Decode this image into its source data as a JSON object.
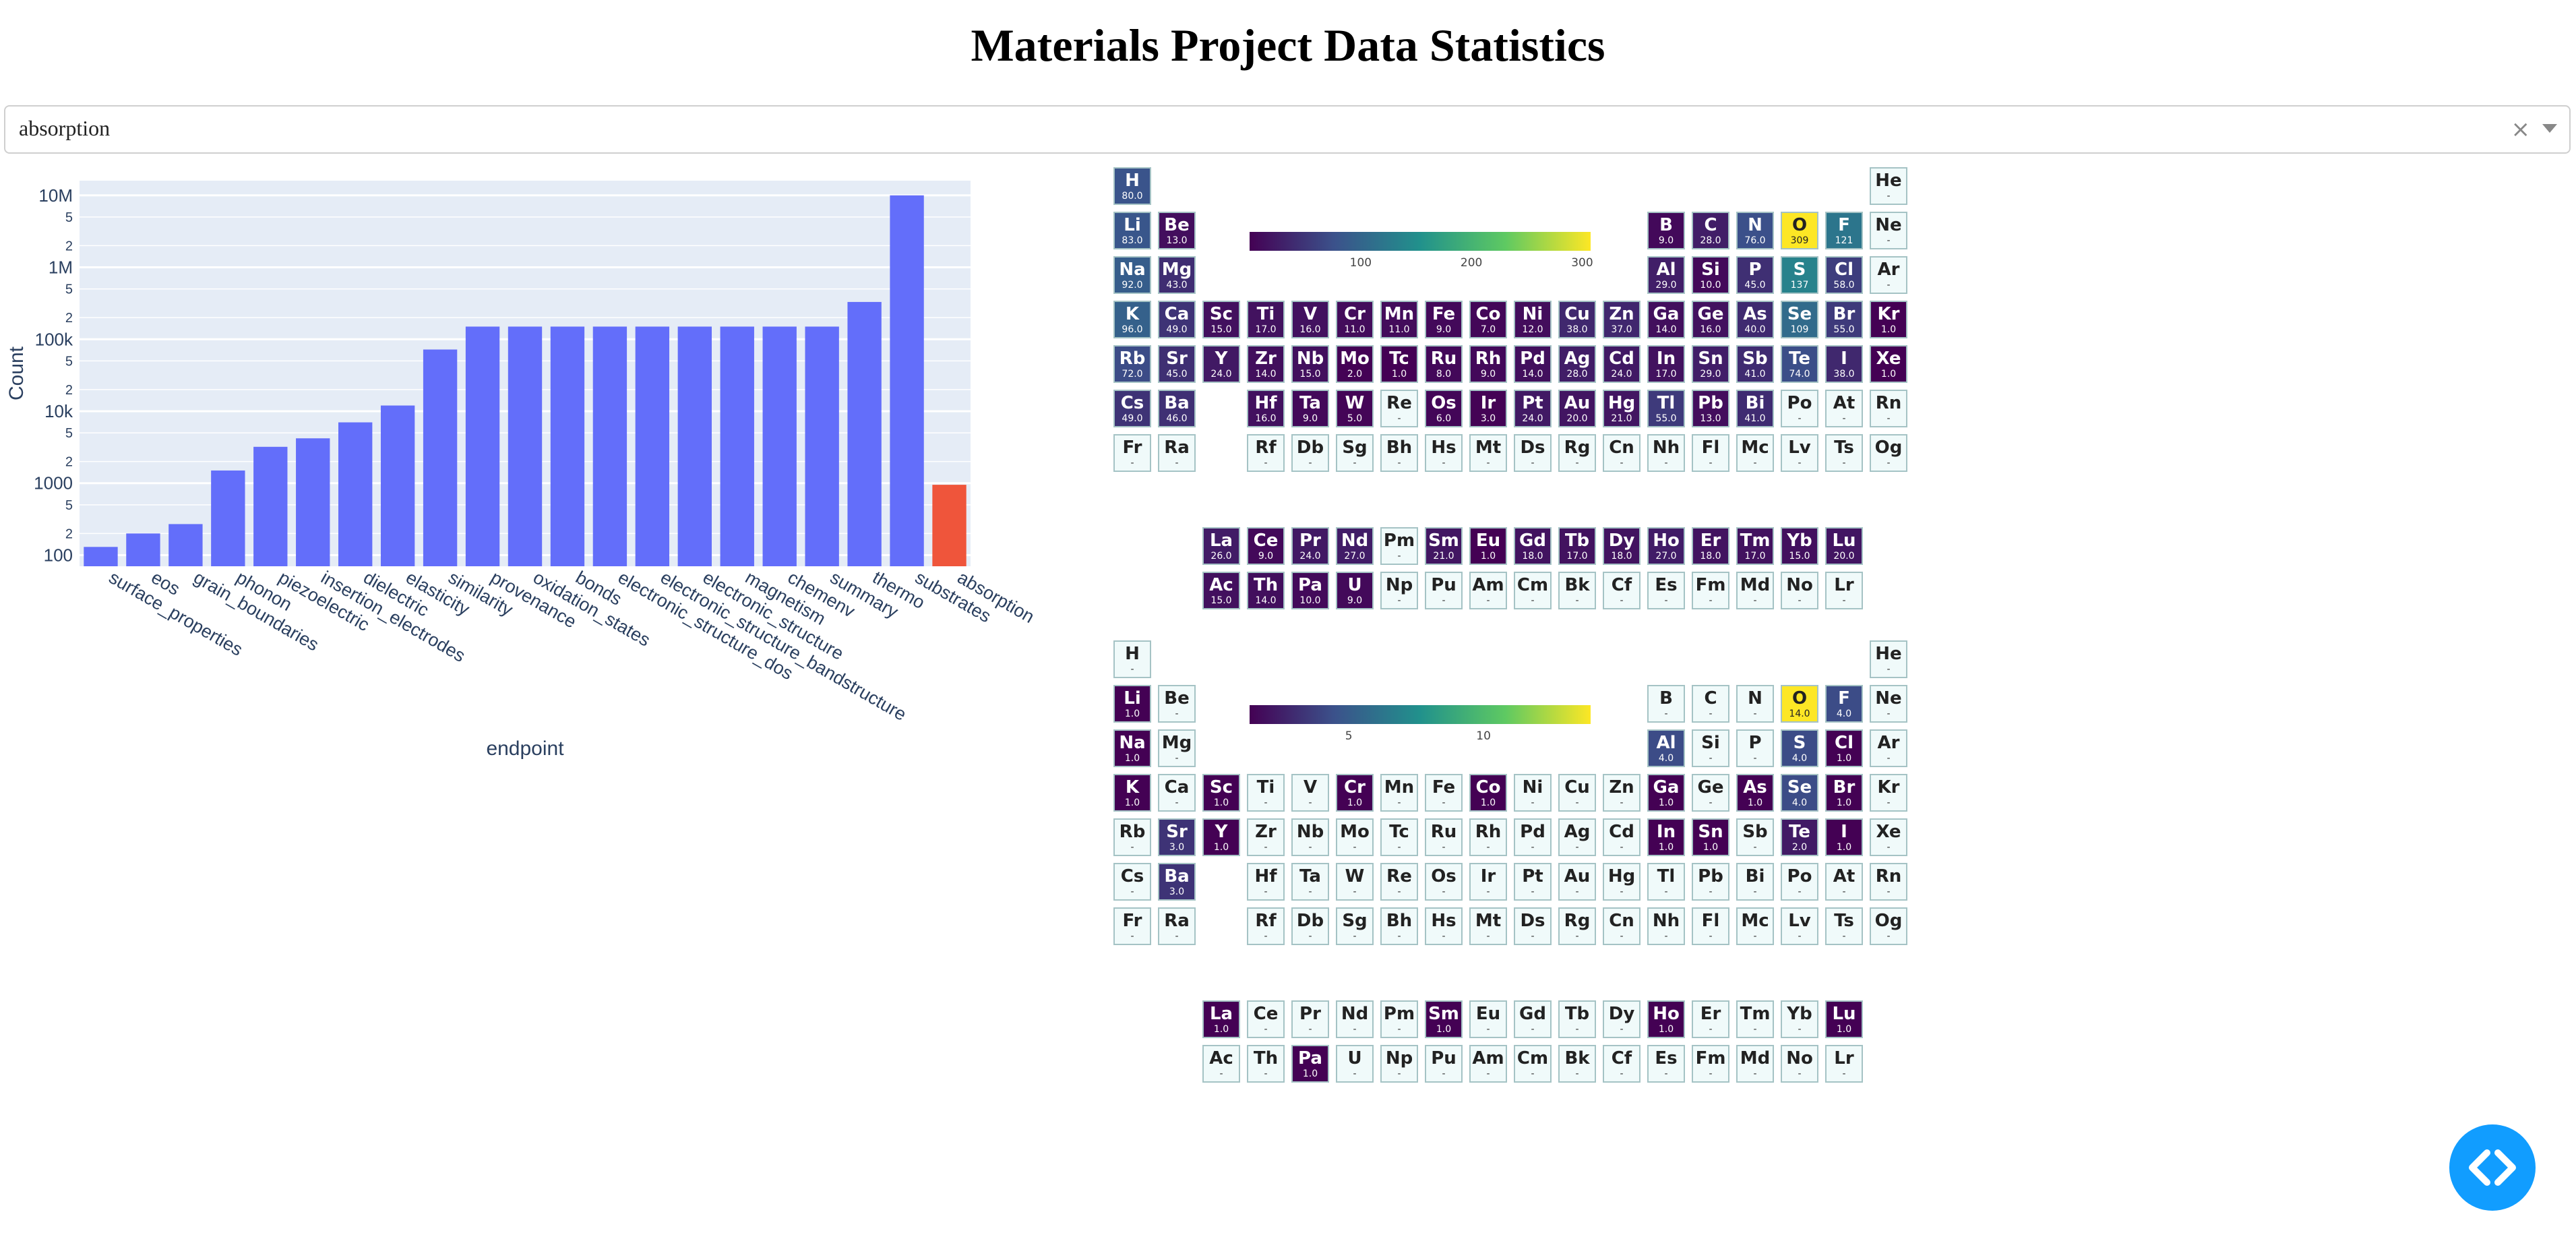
{
  "page": {
    "title": "Materials Project Data Statistics"
  },
  "dropdown": {
    "value": "absorption",
    "clear_icon": "×",
    "arrow_icon": "chevron-down-icon"
  },
  "code_button": {
    "icon": "code-brackets-icon"
  },
  "colors": {
    "bar_default": "#636efa",
    "bar_selected": "#ef553b",
    "plot_bg": "#e5ecf6",
    "empty_cell": "#f0fafa"
  },
  "chart_data": {
    "type": "bar",
    "categories": [
      "surface_properties",
      "eos",
      "grain_boundaries",
      "phonon",
      "piezoelectric",
      "insertion_electrodes",
      "dielectric",
      "elasticity",
      "similarity",
      "provenance",
      "oxidation_states",
      "bonds",
      "electronic_structure_dos",
      "electronic_structure_bandstructure",
      "electronic_structure",
      "magnetism",
      "chemenv",
      "summary",
      "thermo",
      "substrates",
      "absorption"
    ],
    "values": [
      130,
      200,
      270,
      1500,
      3200,
      4200,
      7000,
      12000,
      72000,
      150000,
      150000,
      150000,
      150000,
      150000,
      150000,
      150000,
      150000,
      150000,
      330000,
      10000000,
      950
    ],
    "selected": "absorption",
    "xlabel": "endpoint",
    "ylabel": "Count",
    "y_scale": "log",
    "y_ticks_major": [
      "100",
      "1000",
      "10k",
      "100k",
      "1M",
      "10M"
    ],
    "y_ticks_minor": [
      "2",
      "5"
    ],
    "grid": true
  },
  "ptable_top": {
    "colorbar_ticks": [
      "100",
      "200",
      "300"
    ],
    "colorbar_min": 1,
    "colorbar_max": 309,
    "values": {
      "H": "80.0",
      "Li": "83.0",
      "Be": "13.0",
      "B": "9.0",
      "C": "28.0",
      "N": "76.0",
      "O": "309",
      "F": "121",
      "Na": "92.0",
      "Mg": "43.0",
      "Al": "29.0",
      "Si": "10.0",
      "P": "45.0",
      "S": "137",
      "Cl": "58.0",
      "K": "96.0",
      "Ca": "49.0",
      "Sc": "15.0",
      "Ti": "17.0",
      "V": "16.0",
      "Cr": "11.0",
      "Mn": "11.0",
      "Fe": "9.0",
      "Co": "7.0",
      "Ni": "12.0",
      "Cu": "38.0",
      "Zn": "37.0",
      "Ga": "14.0",
      "Ge": "16.0",
      "As": "40.0",
      "Se": "109",
      "Br": "55.0",
      "Kr": "1.0",
      "Rb": "72.0",
      "Sr": "45.0",
      "Y": "24.0",
      "Zr": "14.0",
      "Nb": "15.0",
      "Mo": "2.0",
      "Tc": "1.0",
      "Ru": "8.0",
      "Rh": "9.0",
      "Pd": "14.0",
      "Ag": "28.0",
      "Cd": "24.0",
      "In": "17.0",
      "Sn": "29.0",
      "Sb": "41.0",
      "Te": "74.0",
      "I": "38.0",
      "Xe": "1.0",
      "Cs": "49.0",
      "Ba": "46.0",
      "Hf": "16.0",
      "Ta": "9.0",
      "W": "5.0",
      "Os": "6.0",
      "Ir": "3.0",
      "Pt": "24.0",
      "Au": "20.0",
      "Hg": "21.0",
      "Tl": "55.0",
      "Pb": "13.0",
      "Bi": "41.0",
      "La": "26.0",
      "Ce": "9.0",
      "Pr": "24.0",
      "Nd": "27.0",
      "Sm": "21.0",
      "Eu": "1.0",
      "Gd": "18.0",
      "Tb": "17.0",
      "Dy": "18.0",
      "Ho": "27.0",
      "Er": "18.0",
      "Tm": "17.0",
      "Yb": "15.0",
      "Lu": "20.0",
      "Ac": "15.0",
      "Th": "14.0",
      "Pa": "10.0",
      "U": "9.0"
    }
  },
  "ptable_bottom": {
    "colorbar_ticks": [
      "5",
      "10"
    ],
    "colorbar_min": 1,
    "colorbar_max": 14,
    "values": {
      "Li": "1.0",
      "O": "14.0",
      "F": "4.0",
      "Na": "1.0",
      "Al": "4.0",
      "S": "4.0",
      "Cl": "1.0",
      "K": "1.0",
      "Sc": "1.0",
      "Cr": "1.0",
      "Co": "1.0",
      "Ga": "1.0",
      "As": "1.0",
      "Se": "4.0",
      "Br": "1.0",
      "Sr": "3.0",
      "Y": "1.0",
      "In": "1.0",
      "Sn": "1.0",
      "Te": "2.0",
      "I": "1.0",
      "Ba": "3.0",
      "La": "1.0",
      "Sm": "1.0",
      "Ho": "1.0",
      "Lu": "1.0",
      "Pa": "1.0"
    }
  },
  "empty_value": "-"
}
